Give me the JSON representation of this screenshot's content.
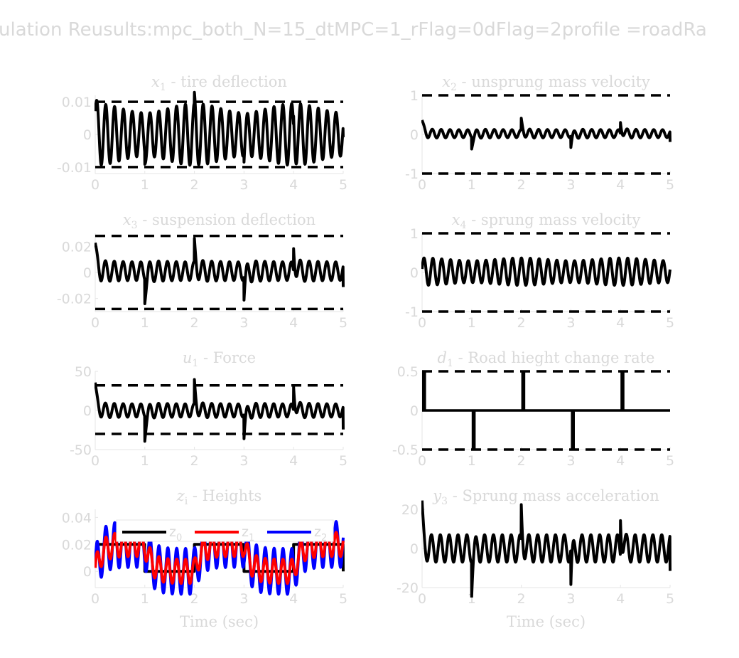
{
  "figure": {
    "suptitle": "ulation Reusults:mpc_both_N=15_dtMPC=1_rFlag=0dFlag=2profile =roadRa"
  },
  "chart_data": [
    {
      "id": "x1",
      "type": "line",
      "title_var": "x",
      "title_sub": "1",
      "title_rest": " - tire deflection",
      "xlim": [
        0,
        5
      ],
      "ylim": [
        -0.012,
        0.012
      ],
      "xticks": [
        0,
        1,
        2,
        3,
        4,
        5
      ],
      "yticks": [
        -0.01,
        0,
        0.01
      ],
      "ytick_labels": [
        "-0.01",
        "0",
        "0.01"
      ],
      "xlabel": "",
      "bounds": [
        -0.01,
        0.01
      ],
      "signal": {
        "kind": "tire",
        "amp": 0.0095,
        "freq": 5.6,
        "spike": 0.0115,
        "offset": 0
      }
    },
    {
      "id": "x2",
      "type": "line",
      "title_var": "x",
      "title_sub": "2",
      "title_rest": " - unsprung mass velocity",
      "xlim": [
        0,
        5
      ],
      "ylim": [
        -1,
        1
      ],
      "xticks": [
        0,
        1,
        2,
        3,
        4,
        5
      ],
      "yticks": [
        -1,
        0,
        1
      ],
      "ytick_labels": [
        "-1",
        "0",
        "1"
      ],
      "xlabel": "",
      "bounds": [
        -1,
        1
      ],
      "signal": {
        "kind": "decay",
        "amp": 0.12,
        "freq": 5.6,
        "spike": 0.28,
        "offset": 0.02
      }
    },
    {
      "id": "x3",
      "type": "line",
      "title_var": "x",
      "title_sub": "3",
      "title_rest": " - suspension deflection",
      "xlim": [
        0,
        5
      ],
      "ylim": [
        -0.03,
        0.03
      ],
      "xticks": [
        0,
        1,
        2,
        3,
        4,
        5
      ],
      "yticks": [
        -0.02,
        0,
        0.02
      ],
      "ytick_labels": [
        "-0.02",
        "0",
        "0.02"
      ],
      "xlabel": "",
      "bounds": [
        -0.028,
        0.028
      ],
      "signal": {
        "kind": "decay",
        "amp": 0.0085,
        "freq": 5.6,
        "spike": 0.017,
        "offset": 0.001
      }
    },
    {
      "id": "x4",
      "type": "line",
      "title_var": "x",
      "title_sub": "4",
      "title_rest": " - sprung mass velocity",
      "xlim": [
        0,
        5
      ],
      "ylim": [
        -1,
        1
      ],
      "xticks": [
        0,
        1,
        2,
        3,
        4,
        5
      ],
      "yticks": [
        -1,
        0,
        1
      ],
      "ytick_labels": [
        "-1",
        "0",
        "1"
      ],
      "xlabel": "",
      "bounds": [
        -1,
        1
      ],
      "signal": {
        "kind": "steady",
        "amp": 0.35,
        "freq": 5.6,
        "spike": 0,
        "offset": 0.02
      }
    },
    {
      "id": "u1",
      "type": "line",
      "title_var": "u",
      "title_sub": "1",
      "title_rest": " - Force",
      "xlim": [
        0,
        5
      ],
      "ylim": [
        -50,
        50
      ],
      "xticks": [
        0,
        1,
        2,
        3,
        4,
        5
      ],
      "yticks": [
        -50,
        0,
        50
      ],
      "ytick_labels": [
        "-50",
        "0",
        "50"
      ],
      "xlabel": "",
      "bounds": [
        -30,
        32
      ],
      "signal": {
        "kind": "decay",
        "amp": 10,
        "freq": 5.6,
        "spike": 30,
        "offset": 0
      }
    },
    {
      "id": "d1",
      "type": "line",
      "title_var": "d",
      "title_sub": "1",
      "title_rest": " - Road hieght change rate",
      "xlim": [
        0,
        5
      ],
      "ylim": [
        -0.5,
        0.5
      ],
      "xticks": [
        0,
        1,
        2,
        3,
        4,
        5
      ],
      "yticks": [
        -0.5,
        0,
        0.5
      ],
      "ytick_labels": [
        "-0.5",
        "0",
        "0.5"
      ],
      "xlabel": "",
      "bounds": [
        -0.5,
        0.5
      ],
      "signal": {
        "kind": "pulses",
        "pulses": [
          [
            0,
            0.5
          ],
          [
            1,
            -0.5
          ],
          [
            2,
            0.5
          ],
          [
            3,
            -0.5
          ],
          [
            4,
            0.5
          ]
        ],
        "width": 0.08
      }
    },
    {
      "id": "zi",
      "type": "line",
      "title_var": "z",
      "title_sub": "i",
      "title_rest": " - Heights",
      "xlim": [
        0,
        5
      ],
      "ylim": [
        -0.012,
        0.046
      ],
      "xticks": [
        0,
        1,
        2,
        3,
        4,
        5
      ],
      "yticks": [
        0,
        0.02,
        0.04
      ],
      "ytick_labels": [
        "0",
        "0.02",
        "0.04"
      ],
      "xlabel": "Time (sec)",
      "bounds": [],
      "legend": {
        "location": "top",
        "entries": [
          {
            "name": "z",
            "sub": "0",
            "color": "#000000"
          },
          {
            "name": "z",
            "sub": "1",
            "color": "#ff0000"
          },
          {
            "name": "z",
            "sub": "2",
            "color": "#0000ff"
          }
        ]
      },
      "series": [
        {
          "name": "z0",
          "color": "#000000",
          "kind": "road_level",
          "high": 0.02,
          "low": 0
        },
        {
          "name": "z1",
          "color": "#ff0000",
          "kind": "road_follow",
          "amp": 0.009,
          "freq": 5.6
        },
        {
          "name": "z2",
          "color": "#0000ff",
          "kind": "road_follow",
          "amp": 0.017,
          "freq": 5.6
        }
      ]
    },
    {
      "id": "y3",
      "type": "line",
      "title_var": "y",
      "title_sub": "3",
      "title_rest": " - Sprung mass acceleration",
      "xlim": [
        0,
        5
      ],
      "ylim": [
        -20,
        20
      ],
      "xticks": [
        0,
        1,
        2,
        3,
        4,
        5
      ],
      "yticks": [
        -20,
        0,
        20
      ],
      "ytick_labels": [
        "-20",
        "0",
        "20"
      ],
      "xlabel": "Time (sec)",
      "bounds": [],
      "signal": {
        "kind": "accel",
        "amp": 7,
        "freq": 5.6,
        "spike": 18,
        "offset": 0
      }
    }
  ]
}
